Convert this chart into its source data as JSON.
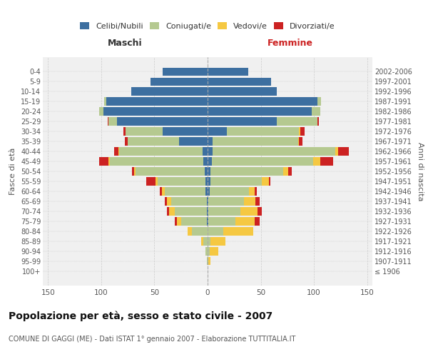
{
  "age_groups": [
    "100+",
    "95-99",
    "90-94",
    "85-89",
    "80-84",
    "75-79",
    "70-74",
    "65-69",
    "60-64",
    "55-59",
    "50-54",
    "45-49",
    "40-44",
    "35-39",
    "30-34",
    "25-29",
    "20-24",
    "15-19",
    "10-14",
    "5-9",
    "0-4"
  ],
  "birth_years": [
    "≤ 1906",
    "1907-1911",
    "1912-1916",
    "1917-1921",
    "1922-1926",
    "1927-1931",
    "1932-1936",
    "1937-1941",
    "1942-1946",
    "1947-1951",
    "1952-1956",
    "1957-1961",
    "1962-1966",
    "1967-1971",
    "1972-1976",
    "1977-1981",
    "1982-1986",
    "1987-1991",
    "1992-1996",
    "1997-2001",
    "2002-2006"
  ],
  "males": {
    "celibi": [
      0,
      0,
      0,
      0,
      0,
      1,
      1,
      1,
      2,
      2,
      3,
      4,
      5,
      27,
      42,
      85,
      98,
      95,
      72,
      54,
      42
    ],
    "coniugati": [
      0,
      1,
      2,
      4,
      15,
      24,
      30,
      33,
      38,
      45,
      65,
      88,
      78,
      48,
      35,
      8,
      4,
      2,
      0,
      0,
      0
    ],
    "vedovi": [
      0,
      0,
      0,
      2,
      4,
      4,
      5,
      4,
      3,
      2,
      1,
      1,
      1,
      0,
      0,
      0,
      0,
      0,
      0,
      0,
      0
    ],
    "divorziati": [
      0,
      0,
      0,
      0,
      0,
      2,
      2,
      2,
      2,
      9,
      2,
      9,
      4,
      3,
      2,
      1,
      0,
      0,
      0,
      0,
      0
    ]
  },
  "females": {
    "nubili": [
      0,
      0,
      0,
      0,
      0,
      1,
      1,
      1,
      2,
      3,
      3,
      4,
      5,
      5,
      18,
      65,
      98,
      103,
      65,
      60,
      38
    ],
    "coniugate": [
      0,
      1,
      2,
      3,
      15,
      25,
      30,
      33,
      37,
      48,
      68,
      95,
      115,
      80,
      68,
      38,
      8,
      4,
      0,
      0,
      0
    ],
    "vedove": [
      0,
      2,
      8,
      14,
      28,
      18,
      16,
      11,
      5,
      7,
      5,
      7,
      3,
      1,
      1,
      0,
      0,
      0,
      0,
      0,
      0
    ],
    "divorziate": [
      0,
      0,
      0,
      0,
      0,
      5,
      4,
      4,
      2,
      1,
      3,
      12,
      10,
      3,
      4,
      2,
      0,
      0,
      0,
      0,
      0
    ]
  },
  "colors": {
    "celibi": "#3d6fa0",
    "coniugati": "#b5c990",
    "vedovi": "#f5c842",
    "divorziati": "#cc2222"
  },
  "xlim": 155,
  "title": "Popolazione per età, sesso e stato civile - 2007",
  "subtitle": "COMUNE DI GAGGI (ME) - Dati ISTAT 1° gennaio 2007 - Elaborazione TUTTITALIA.IT",
  "ylabel_left": "Fasce di età",
  "ylabel_right": "Anni di nascita",
  "xlabel_left": "Maschi",
  "xlabel_right": "Femmine",
  "bg_color": "#ffffff",
  "plot_bg": "#f0f0f0",
  "grid_color": "#cccccc"
}
